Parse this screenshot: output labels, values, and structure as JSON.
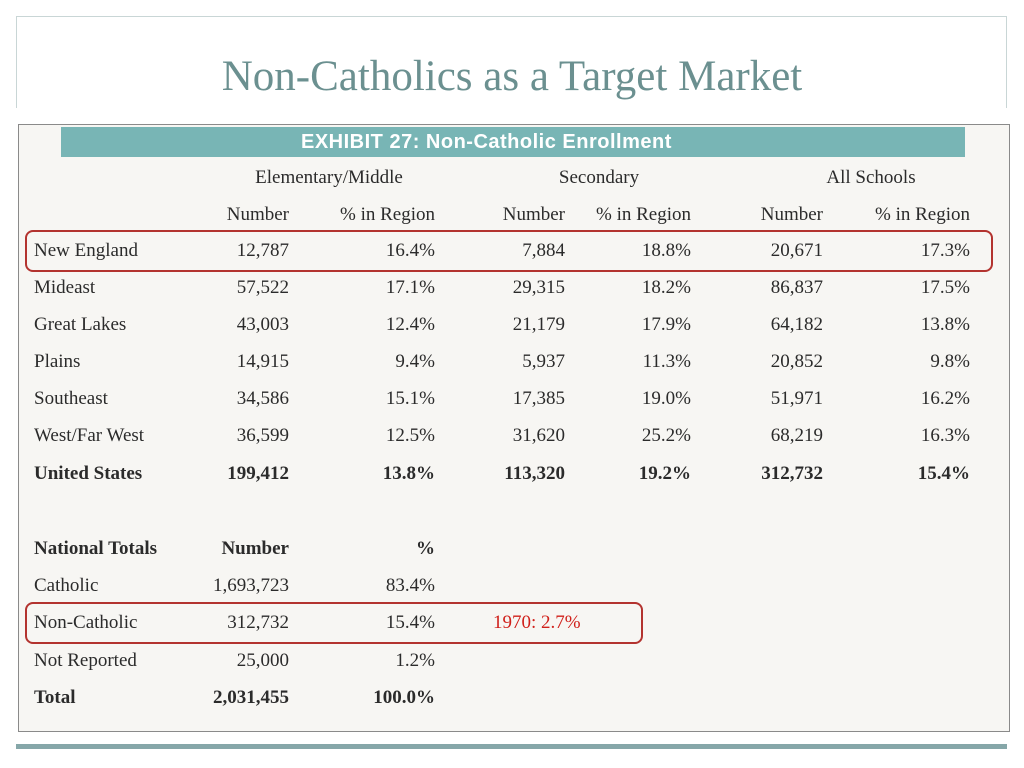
{
  "slide": {
    "title": "Non-Catholics as a Target Market"
  },
  "exhibit": {
    "banner": "EXHIBIT 27: Non-Catholic Enrollment",
    "group_headers": [
      "Elementary/Middle",
      "Secondary",
      "All Schools"
    ],
    "sub_headers": [
      "Number",
      "% in Region",
      "Number",
      "% in Region",
      "Number",
      "% in Region"
    ],
    "regions": [
      {
        "name": "New England",
        "em_num": "12,787",
        "em_pct": "16.4%",
        "sec_num": "7,884",
        "sec_pct": "18.8%",
        "all_num": "20,671",
        "all_pct": "17.3%"
      },
      {
        "name": "Mideast",
        "em_num": "57,522",
        "em_pct": "17.1%",
        "sec_num": "29,315",
        "sec_pct": "18.2%",
        "all_num": "86,837",
        "all_pct": "17.5%"
      },
      {
        "name": "Great Lakes",
        "em_num": "43,003",
        "em_pct": "12.4%",
        "sec_num": "21,179",
        "sec_pct": "17.9%",
        "all_num": "64,182",
        "all_pct": "13.8%"
      },
      {
        "name": "Plains",
        "em_num": "14,915",
        "em_pct": "9.4%",
        "sec_num": "5,937",
        "sec_pct": "11.3%",
        "all_num": "20,852",
        "all_pct": "9.8%"
      },
      {
        "name": "Southeast",
        "em_num": "34,586",
        "em_pct": "15.1%",
        "sec_num": "17,385",
        "sec_pct": "19.0%",
        "all_num": "51,971",
        "all_pct": "16.2%"
      },
      {
        "name": "West/Far West",
        "em_num": "36,599",
        "em_pct": "12.5%",
        "sec_num": "31,620",
        "sec_pct": "25.2%",
        "all_num": "68,219",
        "all_pct": "16.3%"
      },
      {
        "name": "United States",
        "em_num": "199,412",
        "em_pct": "13.8%",
        "sec_num": "113,320",
        "sec_pct": "19.2%",
        "all_num": "312,732",
        "all_pct": "15.4%"
      }
    ],
    "national": {
      "headers": [
        "National Totals",
        "Number",
        "%"
      ],
      "rows": [
        {
          "name": "Catholic",
          "num": "1,693,723",
          "pct": "83.4%"
        },
        {
          "name": "Non-Catholic",
          "num": "312,732",
          "pct": "15.4%"
        },
        {
          "name": "Not Reported",
          "num": "25,000",
          "pct": "1.2%"
        },
        {
          "name": "Total",
          "num": "2,031,455",
          "pct": "100.0%"
        }
      ]
    },
    "annotation": "1970: 2.7%"
  },
  "colors": {
    "title": "#6b9090",
    "banner": "#78b5b5",
    "highlight": "#b3332f",
    "annotation": "#d0201a",
    "bottom_rule": "#86a7a9"
  }
}
